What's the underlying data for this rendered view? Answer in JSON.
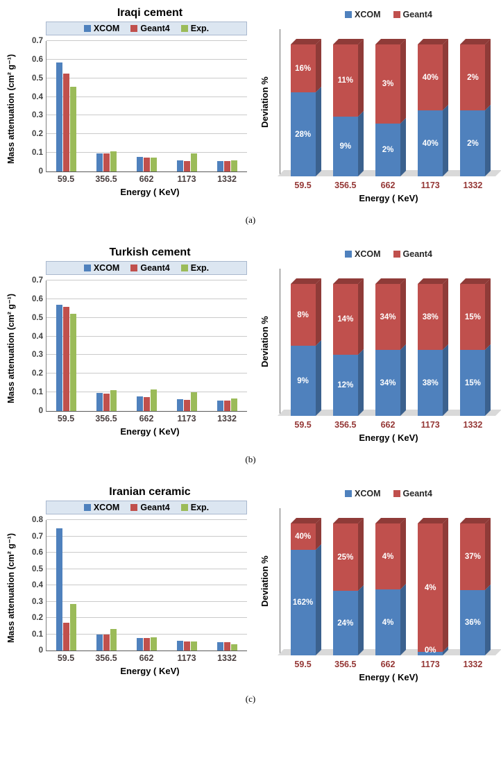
{
  "panel_tags": [
    "(a)",
    "(b)",
    "(c)"
  ],
  "colors": {
    "xcom": "#4F81BD",
    "geant4": "#C0504D",
    "exp": "#9BBB59",
    "xcom_dark": "#3B618E",
    "geant4_dark": "#8F3B38",
    "floor": "#D9D9D9",
    "legend_bg": "#DCE6F1",
    "left_tick_text": "#4A3F3F",
    "right_tick_text": "#943634"
  },
  "chart_data": [
    {
      "type": "bar",
      "title": "Iraqi cement",
      "xlabel": "Energy ( KeV)",
      "ylabel": "Mass attenuation (cm² g⁻¹)",
      "categories": [
        "59.5",
        "356.5",
        "662",
        "1173",
        "1332"
      ],
      "ylim": [
        0,
        0.7
      ],
      "ytick_step": 0.1,
      "grid": true,
      "legend_position": "top-inside",
      "series": [
        {
          "name": "XCOM",
          "color_key": "xcom",
          "values": [
            0.585,
            0.098,
            0.077,
            0.058,
            0.057
          ]
        },
        {
          "name": "Geant4",
          "color_key": "geant4",
          "values": [
            0.525,
            0.096,
            0.076,
            0.057,
            0.056
          ]
        },
        {
          "name": "Exp.",
          "color_key": "exp",
          "values": [
            0.455,
            0.108,
            0.075,
            0.097,
            0.059
          ]
        }
      ]
    },
    {
      "type": "stacked-bar-100",
      "title": "",
      "xlabel": "Energy ( KeV)",
      "ylabel": "Deviation %",
      "categories": [
        "59.5",
        "356.5",
        "662",
        "1173",
        "1332"
      ],
      "legend_position": "top",
      "unit": "%",
      "series": [
        {
          "name": "XCOM",
          "color_key": "xcom",
          "values": [
            28,
            9,
            2,
            40,
            2
          ]
        },
        {
          "name": "Geant4",
          "color_key": "geant4",
          "values": [
            16,
            11,
            3,
            40,
            2
          ]
        }
      ]
    },
    {
      "type": "bar",
      "title": "Turkish cement",
      "xlabel": "Energy ( KeV)",
      "ylabel": "Mass attenuation (cm² g⁻¹)",
      "categories": [
        "59.5",
        "356.5",
        "662",
        "1173",
        "1332"
      ],
      "ylim": [
        0,
        0.7
      ],
      "ytick_step": 0.1,
      "grid": true,
      "legend_position": "top-inside",
      "series": [
        {
          "name": "XCOM",
          "color_key": "xcom",
          "values": [
            0.57,
            0.098,
            0.078,
            0.062,
            0.057
          ]
        },
        {
          "name": "Geant4",
          "color_key": "geant4",
          "values": [
            0.558,
            0.095,
            0.076,
            0.061,
            0.056
          ]
        },
        {
          "name": "Exp.",
          "color_key": "exp",
          "values": [
            0.52,
            0.112,
            0.115,
            0.1,
            0.066
          ]
        }
      ]
    },
    {
      "type": "stacked-bar-100",
      "title": "",
      "xlabel": "Energy ( KeV)",
      "ylabel": "Deviation %",
      "categories": [
        "59.5",
        "356.5",
        "662",
        "1173",
        "1332"
      ],
      "legend_position": "top",
      "unit": "%",
      "series": [
        {
          "name": "XCOM",
          "color_key": "xcom",
          "values": [
            9,
            12,
            34,
            38,
            15
          ]
        },
        {
          "name": "Geant4",
          "color_key": "geant4",
          "values": [
            8,
            14,
            34,
            38,
            15
          ]
        }
      ]
    },
    {
      "type": "bar",
      "title": "Iranian ceramic",
      "xlabel": "Energy ( KeV)",
      "ylabel": "Mass attenuation (cm² g⁻¹)",
      "categories": [
        "59.5",
        "356.5",
        "662",
        "1173",
        "1332"
      ],
      "ylim": [
        0,
        0.8
      ],
      "ytick_step": 0.1,
      "grid": true,
      "legend_position": "top-inside",
      "series": [
        {
          "name": "XCOM",
          "color_key": "xcom",
          "values": [
            0.75,
            0.1,
            0.078,
            0.058,
            0.052
          ]
        },
        {
          "name": "Geant4",
          "color_key": "geant4",
          "values": [
            0.172,
            0.096,
            0.075,
            0.056,
            0.051
          ]
        },
        {
          "name": "Exp.",
          "color_key": "exp",
          "values": [
            0.285,
            0.13,
            0.082,
            0.057,
            0.037
          ]
        }
      ]
    },
    {
      "type": "stacked-bar-100",
      "title": "",
      "xlabel": "Energy ( KeV)",
      "ylabel": "Deviation %",
      "categories": [
        "59.5",
        "356.5",
        "662",
        "1173",
        "1332"
      ],
      "legend_position": "top",
      "unit": "%",
      "series": [
        {
          "name": "XCOM",
          "color_key": "xcom",
          "values": [
            162,
            24,
            4,
            0,
            36
          ]
        },
        {
          "name": "Geant4",
          "color_key": "geant4",
          "values": [
            40,
            25,
            4,
            4,
            37
          ]
        }
      ]
    }
  ]
}
